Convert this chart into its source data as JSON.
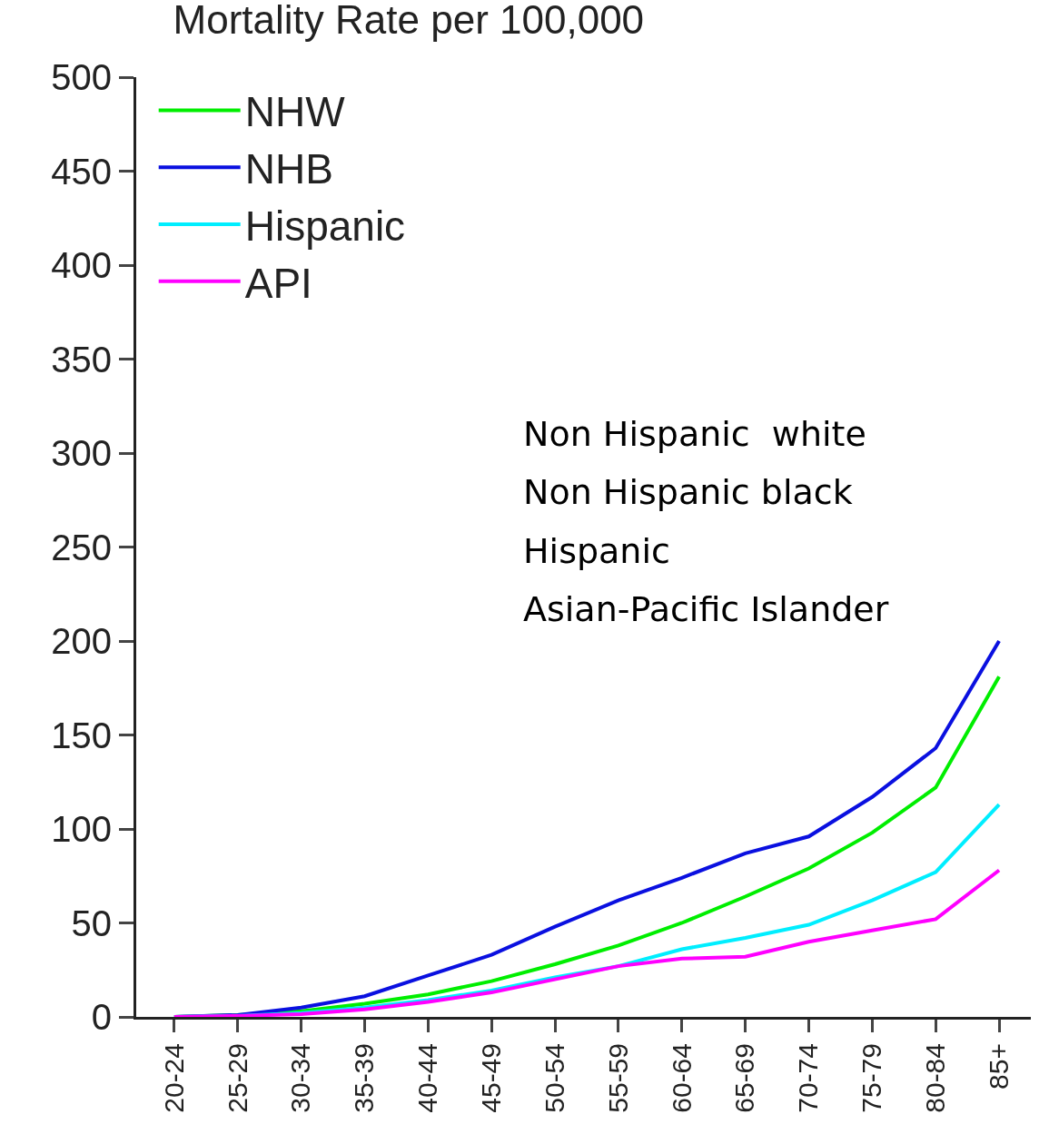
{
  "chart_data": {
    "type": "line",
    "title": "Mortality Rate per 100,000",
    "categories": [
      "20-24",
      "25-29",
      "30-34",
      "35-39",
      "40-44",
      "45-49",
      "50-54",
      "55-59",
      "60-64",
      "65-69",
      "70-74",
      "75-79",
      "80-84",
      "85+"
    ],
    "series": [
      {
        "name": "NHW",
        "color": "#00ee00",
        "values": [
          0,
          1,
          3,
          7,
          12,
          19,
          28,
          38,
          50,
          64,
          79,
          98,
          122,
          181
        ]
      },
      {
        "name": "NHB",
        "color": "#0a10e0",
        "values": [
          0,
          1,
          5,
          11,
          22,
          33,
          48,
          62,
          74,
          87,
          96,
          117,
          143,
          200
        ]
      },
      {
        "name": "Hispanic",
        "color": "#00eeff",
        "values": [
          0,
          0.5,
          2,
          5,
          9,
          14,
          21,
          27,
          36,
          42,
          49,
          62,
          77,
          113
        ]
      },
      {
        "name": "API",
        "color": "#ff00ff",
        "values": [
          0,
          0.5,
          1.5,
          4,
          8,
          13,
          20,
          27,
          31,
          32,
          40,
          46,
          52,
          78
        ]
      }
    ],
    "ylim": [
      0,
      500
    ],
    "yticks": [
      0,
      50,
      100,
      150,
      200,
      250,
      300,
      350,
      400,
      450,
      500
    ],
    "annotations": [
      "Non Hispanic  white",
      "Non Hispanic black",
      "Hispanic",
      "Asian-Pacific Islander"
    ],
    "legend": "top left",
    "marker": "none",
    "line_style": "solid"
  }
}
